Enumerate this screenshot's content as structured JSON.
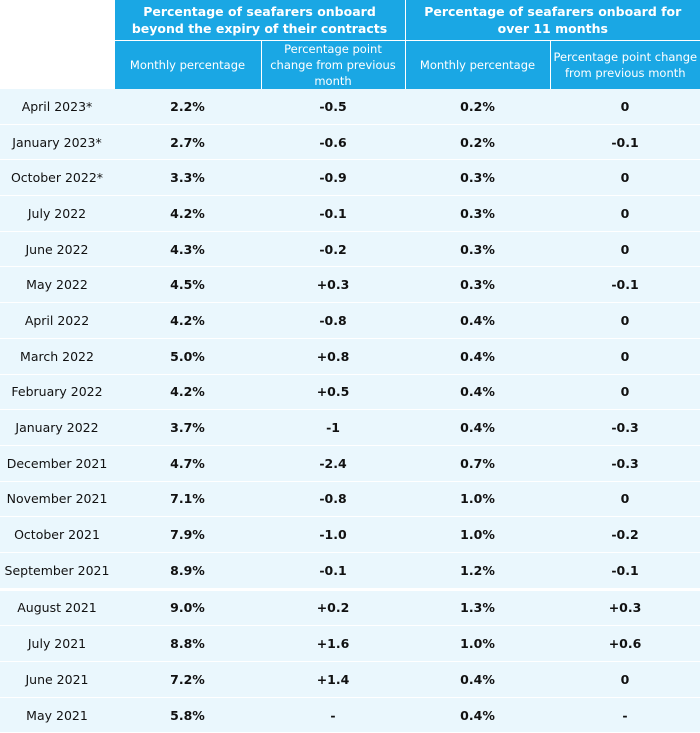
{
  "table": {
    "groups": [
      "Percentage of seafarers onboard beyond the expiry of their contracts",
      "Percentage of seafarers onboard for over 11 months"
    ],
    "subheaders": [
      "Monthly percentage",
      "Percentage point change from previous month",
      "Monthly percentage",
      "Percentage point change from previous month"
    ],
    "rows": [
      {
        "date": "April 2023*",
        "beyond_pct": "2.2%",
        "beyond_change": "-0.5",
        "over11_pct": "0.2%",
        "over11_change": "0"
      },
      {
        "date": "January 2023*",
        "beyond_pct": "2.7%",
        "beyond_change": "-0.6",
        "over11_pct": "0.2%",
        "over11_change": "-0.1"
      },
      {
        "date": "October 2022*",
        "beyond_pct": "3.3%",
        "beyond_change": "-0.9",
        "over11_pct": "0.3%",
        "over11_change": "0"
      },
      {
        "date": "July 2022",
        "beyond_pct": "4.2%",
        "beyond_change": "-0.1",
        "over11_pct": "0.3%",
        "over11_change": "0"
      },
      {
        "date": "June 2022",
        "beyond_pct": "4.3%",
        "beyond_change": "-0.2",
        "over11_pct": "0.3%",
        "over11_change": "0"
      },
      {
        "date": "May 2022",
        "beyond_pct": "4.5%",
        "beyond_change": "+0.3",
        "over11_pct": "0.3%",
        "over11_change": "-0.1"
      },
      {
        "date": "April 2022",
        "beyond_pct": "4.2%",
        "beyond_change": "-0.8",
        "over11_pct": "0.4%",
        "over11_change": "0"
      },
      {
        "date": "March 2022",
        "beyond_pct": "5.0%",
        "beyond_change": "+0.8",
        "over11_pct": "0.4%",
        "over11_change": "0"
      },
      {
        "date": "February 2022",
        "beyond_pct": "4.2%",
        "beyond_change": "+0.5",
        "over11_pct": "0.4%",
        "over11_change": "0"
      },
      {
        "date": "January 2022",
        "beyond_pct": "3.7%",
        "beyond_change": "-1",
        "over11_pct": "0.4%",
        "over11_change": "-0.3"
      },
      {
        "date": "December 2021",
        "beyond_pct": "4.7%",
        "beyond_change": "-2.4",
        "over11_pct": "0.7%",
        "over11_change": "-0.3"
      },
      {
        "date": "November 2021",
        "beyond_pct": "7.1%",
        "beyond_change": "-0.8",
        "over11_pct": "1.0%",
        "over11_change": "0"
      },
      {
        "date": "October 2021",
        "beyond_pct": "7.9%",
        "beyond_change": "-1.0",
        "over11_pct": "1.0%",
        "over11_change": "-0.2"
      },
      {
        "date": "September 2021",
        "beyond_pct": "8.9%",
        "beyond_change": "-0.1",
        "over11_pct": "1.2%",
        "over11_change": "-0.1"
      },
      {
        "date": "August 2021",
        "beyond_pct": "9.0%",
        "beyond_change": "+0.2",
        "over11_pct": "1.3%",
        "over11_change": "+0.3"
      },
      {
        "date": "July 2021",
        "beyond_pct": "8.8%",
        "beyond_change": "+1.6",
        "over11_pct": "1.0%",
        "over11_change": "+0.6"
      },
      {
        "date": "June 2021",
        "beyond_pct": "7.2%",
        "beyond_change": "+1.4",
        "over11_pct": "0.4%",
        "over11_change": "0"
      },
      {
        "date": "May 2021",
        "beyond_pct": "5.8%",
        "beyond_change": "-",
        "over11_pct": "0.4%",
        "over11_change": "-"
      }
    ]
  },
  "colors": {
    "header_bg": "#1aa7e4",
    "header_text": "#ffffff",
    "row_bg": "#eaf7fd"
  }
}
